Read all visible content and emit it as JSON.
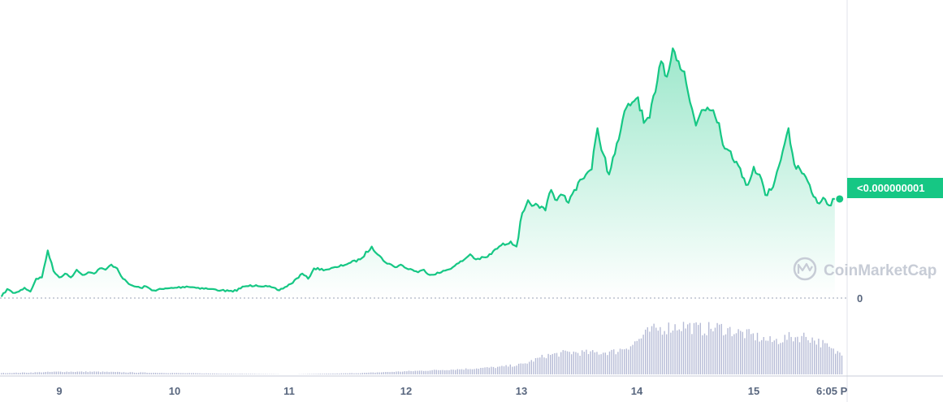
{
  "watermark": {
    "text": "CoinMarketCap",
    "icon": "coinmarketcap-logo-icon"
  },
  "price_badge": {
    "text": "<0.000000001"
  },
  "y_zero_label": "0",
  "colors": {
    "line": "#16c784",
    "area_top": "#16c784",
    "volume": "#b6bbd6",
    "axis_text": "#58667e",
    "badge_bg": "#16c784",
    "grid": "#e0e3eb",
    "watermark": "#c7ccd6"
  },
  "chart_data": {
    "type": "line",
    "title": "",
    "xlabel": "",
    "ylabel": "",
    "x_ticks": [
      "9",
      "10",
      "11",
      "12",
      "13",
      "14",
      "15",
      "6:05 P"
    ],
    "y_ticks": [
      "0"
    ],
    "x_range": [
      8.5,
      15.8
    ],
    "y_range": [
      0,
      100
    ],
    "grid": false,
    "legend": "none",
    "price_series": {
      "name": "",
      "x": [
        8.5,
        8.55,
        8.6,
        8.65,
        8.7,
        8.75,
        8.8,
        8.85,
        8.9,
        8.95,
        9.0,
        9.05,
        9.1,
        9.15,
        9.2,
        9.25,
        9.3,
        9.35,
        9.4,
        9.45,
        9.5,
        9.55,
        9.6,
        9.65,
        9.7,
        9.75,
        9.8,
        9.9,
        10.0,
        10.1,
        10.2,
        10.3,
        10.4,
        10.5,
        10.6,
        10.7,
        10.8,
        10.9,
        11.0,
        11.1,
        11.15,
        11.2,
        11.3,
        11.4,
        11.5,
        11.6,
        11.7,
        11.8,
        11.9,
        11.95,
        12.0,
        12.05,
        12.1,
        12.15,
        12.2,
        12.3,
        12.4,
        12.5,
        12.55,
        12.6,
        12.7,
        12.8,
        12.9,
        12.95,
        13.0,
        13.05,
        13.1,
        13.15,
        13.2,
        13.25,
        13.3,
        13.35,
        13.4,
        13.45,
        13.5,
        13.55,
        13.6,
        13.65,
        13.7,
        13.75,
        13.8,
        13.85,
        13.9,
        13.95,
        14.0,
        14.05,
        14.1,
        14.15,
        14.2,
        14.25,
        14.3,
        14.35,
        14.4,
        14.45,
        14.5,
        14.55,
        14.6,
        14.65,
        14.7,
        14.75,
        14.8,
        14.85,
        14.9,
        14.95,
        15.0,
        15.05,
        15.1,
        15.15,
        15.2,
        15.25,
        15.3,
        15.35,
        15.4,
        15.45,
        15.5,
        15.55,
        15.6,
        15.65,
        15.7
      ],
      "y": [
        0.5,
        3.5,
        2.0,
        2.5,
        4.0,
        2.5,
        7.5,
        8.0,
        18.5,
        10.5,
        8.0,
        9.5,
        8.0,
        11.0,
        9.0,
        10.0,
        9.5,
        11.5,
        11.0,
        13.0,
        11.5,
        7.5,
        5.5,
        4.5,
        4.0,
        4.5,
        3.0,
        3.5,
        4.0,
        4.5,
        4.0,
        3.5,
        3.0,
        2.5,
        4.5,
        5.0,
        4.5,
        3.0,
        5.5,
        9.5,
        7.5,
        11.5,
        11.0,
        12.0,
        13.5,
        15.0,
        20.0,
        14.5,
        12.0,
        13.0,
        11.5,
        11.0,
        10.0,
        11.0,
        9.0,
        10.0,
        12.0,
        15.0,
        17.0,
        15.0,
        16.0,
        20.0,
        22.0,
        20.0,
        33.0,
        38.0,
        36.0,
        35.0,
        34.0,
        42.0,
        38.0,
        40.0,
        37.0,
        42.0,
        46.0,
        48.0,
        50.0,
        66.0,
        56.0,
        48.0,
        56.0,
        65.0,
        74.0,
        76.0,
        78.0,
        68.0,
        70.0,
        80.0,
        92.0,
        86.0,
        97.0,
        92.0,
        88.0,
        76.0,
        67.0,
        73.0,
        74.0,
        73.0,
        68.0,
        58.0,
        57.0,
        53.0,
        47.0,
        44.0,
        51.0,
        48.0,
        40.0,
        42.0,
        49.0,
        57.0,
        66.0,
        52.0,
        50.0,
        47.0,
        41.0,
        37.0,
        39.0,
        36.0,
        38.5
      ]
    },
    "volume_series": {
      "name": "",
      "x": [
        8.5,
        8.8,
        9.0,
        9.3,
        9.6,
        10.0,
        10.5,
        11.0,
        11.3,
        11.6,
        11.9,
        12.2,
        12.5,
        12.8,
        13.0,
        13.2,
        13.4,
        13.6,
        13.8,
        13.95,
        14.1,
        14.25,
        14.4,
        14.55,
        14.7,
        14.85,
        15.0,
        15.15,
        15.3,
        15.45,
        15.6,
        15.7
      ],
      "y": [
        2,
        3,
        4,
        4,
        3,
        2,
        1,
        0,
        1,
        2,
        4,
        6,
        8,
        11,
        15,
        28,
        33,
        32,
        34,
        45,
        65,
        70,
        73,
        67,
        70,
        63,
        57,
        49,
        55,
        57,
        45,
        33
      ]
    }
  }
}
